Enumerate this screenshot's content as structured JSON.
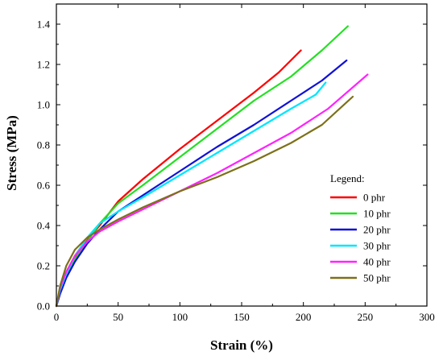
{
  "chart_data": {
    "type": "line",
    "xlabel": "Strain (%)",
    "ylabel": "Stress (MPa)",
    "xlim": [
      0,
      300
    ],
    "ylim": [
      0,
      1.5
    ],
    "xticks": [
      "0",
      "50",
      "100",
      "150",
      "200",
      "250",
      "300"
    ],
    "yticks": [
      "0.0",
      "0.2",
      "0.4",
      "0.6",
      "0.8",
      "1.0",
      "1.2",
      "1.4"
    ],
    "grid": false,
    "legend_title": "Legend:",
    "legend_position": "right",
    "series": [
      {
        "name": "0 phr",
        "color": "#ff0000",
        "points": [
          [
            0,
            0
          ],
          [
            3,
            0.08
          ],
          [
            8,
            0.16
          ],
          [
            15,
            0.24
          ],
          [
            25,
            0.33
          ],
          [
            35,
            0.4
          ],
          [
            50,
            0.52
          ],
          [
            70,
            0.63
          ],
          [
            100,
            0.78
          ],
          [
            130,
            0.92
          ],
          [
            160,
            1.06
          ],
          [
            180,
            1.16
          ],
          [
            198,
            1.27
          ]
        ]
      },
      {
        "name": "10 phr",
        "color": "#22e022",
        "points": [
          [
            0,
            0
          ],
          [
            3,
            0.07
          ],
          [
            8,
            0.15
          ],
          [
            15,
            0.23
          ],
          [
            25,
            0.32
          ],
          [
            35,
            0.41
          ],
          [
            50,
            0.51
          ],
          [
            70,
            0.6
          ],
          [
            100,
            0.74
          ],
          [
            130,
            0.88
          ],
          [
            160,
            1.02
          ],
          [
            190,
            1.14
          ],
          [
            215,
            1.27
          ],
          [
            236,
            1.39
          ]
        ]
      },
      {
        "name": "20 phr",
        "color": "#1010d8",
        "points": [
          [
            0,
            0
          ],
          [
            3,
            0.06
          ],
          [
            8,
            0.14
          ],
          [
            15,
            0.22
          ],
          [
            25,
            0.31
          ],
          [
            35,
            0.38
          ],
          [
            50,
            0.47
          ],
          [
            70,
            0.55
          ],
          [
            100,
            0.67
          ],
          [
            130,
            0.79
          ],
          [
            160,
            0.9
          ],
          [
            190,
            1.02
          ],
          [
            215,
            1.12
          ],
          [
            235,
            1.22
          ]
        ]
      },
      {
        "name": "30 phr",
        "color": "#00e5ff",
        "points": [
          [
            0,
            0
          ],
          [
            3,
            0.08
          ],
          [
            8,
            0.16
          ],
          [
            15,
            0.25
          ],
          [
            25,
            0.34
          ],
          [
            35,
            0.41
          ],
          [
            50,
            0.47
          ],
          [
            70,
            0.54
          ],
          [
            100,
            0.65
          ],
          [
            130,
            0.76
          ],
          [
            160,
            0.87
          ],
          [
            190,
            0.98
          ],
          [
            210,
            1.05
          ],
          [
            218,
            1.11
          ]
        ]
      },
      {
        "name": "40 phr",
        "color": "#ff22ff",
        "points": [
          [
            0,
            0
          ],
          [
            3,
            0.09
          ],
          [
            8,
            0.17
          ],
          [
            15,
            0.25
          ],
          [
            25,
            0.32
          ],
          [
            35,
            0.37
          ],
          [
            50,
            0.42
          ],
          [
            70,
            0.48
          ],
          [
            100,
            0.57
          ],
          [
            130,
            0.66
          ],
          [
            160,
            0.76
          ],
          [
            190,
            0.86
          ],
          [
            220,
            0.98
          ],
          [
            252,
            1.15
          ]
        ]
      },
      {
        "name": "50 phr",
        "color": "#7d7019",
        "points": [
          [
            0,
            0
          ],
          [
            3,
            0.1
          ],
          [
            8,
            0.2
          ],
          [
            15,
            0.28
          ],
          [
            25,
            0.34
          ],
          [
            35,
            0.38
          ],
          [
            50,
            0.43
          ],
          [
            70,
            0.49
          ],
          [
            100,
            0.57
          ],
          [
            130,
            0.64
          ],
          [
            160,
            0.72
          ],
          [
            190,
            0.81
          ],
          [
            215,
            0.9
          ],
          [
            240,
            1.04
          ]
        ]
      }
    ]
  }
}
